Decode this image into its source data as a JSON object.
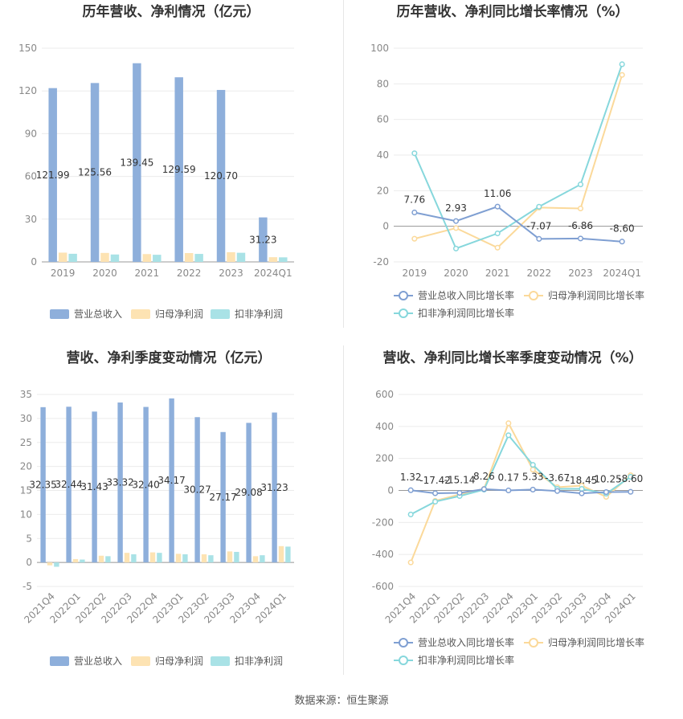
{
  "source_text": "数据来源：恒生聚源",
  "colors": {
    "revenue": "#8eafdb",
    "net": "#fde3b3",
    "deducted": "#a9e2e6",
    "line_revenue": "#7f9fd2",
    "line_net": "#fbd99a",
    "line_deducted": "#86d7dc",
    "axis_text": "#888888",
    "grid": "#ebebeb",
    "title": "#333333"
  },
  "chart_data": [
    {
      "type": "bar",
      "title": "历年营收、净利情况（亿元）",
      "categories": [
        "2019",
        "2020",
        "2021",
        "2022",
        "2023",
        "2024Q1"
      ],
      "yticks": [
        "0",
        "30",
        "60",
        "90",
        "120",
        "150"
      ],
      "ylim": [
        0,
        150
      ],
      "series": [
        {
          "name": "营业总收入",
          "values": [
            121.99,
            125.56,
            139.45,
            129.59,
            120.7,
            31.23
          ]
        },
        {
          "name": "归母净利润",
          "values": [
            6.5,
            6.3,
            5.5,
            6.2,
            6.8,
            3.3
          ]
        },
        {
          "name": "扣非净利润",
          "values": [
            5.7,
            5.2,
            5.0,
            5.6,
            6.4,
            3.2
          ]
        }
      ],
      "data_labels": [
        "121.99",
        "125.56",
        "139.45",
        "129.59",
        "120.70",
        "31.23"
      ],
      "legend_position": "bottom"
    },
    {
      "type": "line",
      "title": "历年营收、净利同比增长率情况（%）",
      "categories": [
        "2019",
        "2020",
        "2021",
        "2022",
        "2023",
        "2024Q1"
      ],
      "yticks": [
        "-20",
        "0",
        "20",
        "40",
        "60",
        "80",
        "100"
      ],
      "ylim": [
        -20,
        100
      ],
      "series": [
        {
          "name": "营业总收入同比增长率",
          "values": [
            7.76,
            2.93,
            11.06,
            -7.07,
            -6.86,
            -8.6
          ]
        },
        {
          "name": "归母净利润同比增长率",
          "values": [
            -7,
            -1,
            -12,
            10.5,
            10,
            85
          ]
        },
        {
          "name": "扣非净利润同比增长率",
          "values": [
            41,
            -12.5,
            -4,
            11,
            23.5,
            91
          ]
        }
      ],
      "data_labels": [
        "7.76",
        "2.93",
        "11.06",
        "-7.07",
        "-6.86",
        "-8.60"
      ],
      "legend_position": "bottom"
    },
    {
      "type": "bar",
      "title": "营收、净利季度变动情况（亿元）",
      "categories": [
        "2021Q4",
        "2022Q1",
        "2022Q2",
        "2022Q3",
        "2022Q4",
        "2023Q1",
        "2023Q2",
        "2023Q3",
        "2023Q4",
        "2024Q1"
      ],
      "yticks": [
        "-5",
        "0",
        "5",
        "10",
        "15",
        "20",
        "25",
        "30",
        "35"
      ],
      "ylim": [
        -5,
        35
      ],
      "series": [
        {
          "name": "营业总收入",
          "values": [
            32.35,
            32.44,
            31.43,
            33.32,
            32.4,
            34.17,
            30.27,
            27.17,
            29.08,
            31.23
          ]
        },
        {
          "name": "归母净利润",
          "values": [
            -0.6,
            0.7,
            1.4,
            2.0,
            2.1,
            1.8,
            1.7,
            2.3,
            1.3,
            3.4
          ]
        },
        {
          "name": "扣非净利润",
          "values": [
            -0.9,
            0.6,
            1.3,
            1.7,
            2.0,
            1.7,
            1.5,
            2.2,
            1.5,
            3.3
          ]
        }
      ],
      "data_labels": [
        "32.35",
        "32.44",
        "31.43",
        "33.32",
        "32.40",
        "34.17",
        "30.27",
        "27.17",
        "29.08",
        "31.23"
      ],
      "legend_position": "bottom"
    },
    {
      "type": "line",
      "title": "营收、净利同比增长率季度变动情况（%）",
      "categories": [
        "2021Q4",
        "2022Q1",
        "2022Q2",
        "2022Q3",
        "2022Q4",
        "2023Q1",
        "2023Q2",
        "2023Q3",
        "2023Q4",
        "2024Q1"
      ],
      "yticks": [
        "-600",
        "-400",
        "-200",
        "0",
        "200",
        "400",
        "600"
      ],
      "ylim": [
        -600,
        600
      ],
      "series": [
        {
          "name": "营业总收入同比增长率",
          "values": [
            1.32,
            -17.42,
            -15.14,
            8.26,
            0.17,
            5.33,
            -3.67,
            -18.45,
            -10.25,
            -8.6
          ]
        },
        {
          "name": "归母净利润同比增长率",
          "values": [
            -450,
            -65,
            -25,
            10,
            420,
            130,
            20,
            30,
            -40,
            95
          ]
        },
        {
          "name": "扣非净利润同比增长率",
          "values": [
            -150,
            -70,
            -35,
            5,
            345,
            160,
            10,
            10,
            -20,
            85
          ]
        }
      ],
      "data_labels": [
        "1.32",
        "-17.42",
        "-15.14",
        "8.26",
        "0.17",
        "5.33",
        "-3.67",
        "-18.45",
        "-10.25",
        "-8.60"
      ],
      "legend_position": "bottom"
    }
  ]
}
